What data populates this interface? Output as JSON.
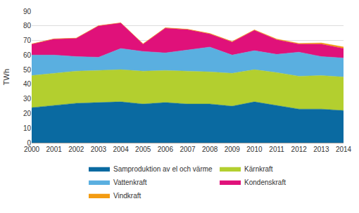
{
  "chart_data": {
    "type": "area",
    "stacked": true,
    "x": [
      2000,
      2001,
      2002,
      2003,
      2004,
      2005,
      2006,
      2007,
      2008,
      2009,
      2010,
      2011,
      2012,
      2013,
      2014
    ],
    "xlim": [
      2000,
      2014
    ],
    "xticks": [
      2000,
      2001,
      2002,
      2003,
      2004,
      2005,
      2006,
      2007,
      2008,
      2009,
      2010,
      2011,
      2012,
      2013,
      2014
    ],
    "y_label": "TWh",
    "ylim": [
      0,
      90
    ],
    "yticks": [
      0,
      10,
      20,
      30,
      40,
      50,
      60,
      70,
      80,
      90
    ],
    "grid": true,
    "legend": "bottom",
    "series": [
      {
        "name": "Samproduktion av el och värme",
        "color": "#0a6aa1",
        "values": [
          24,
          25.5,
          27,
          27.5,
          28,
          26.5,
          27.5,
          26.5,
          26.5,
          25,
          28,
          25.5,
          23,
          23,
          22
        ]
      },
      {
        "name": "Kärnkraft",
        "color": "#b3cf2f",
        "values": [
          22,
          22,
          22,
          22,
          22,
          22.5,
          22,
          22.5,
          22,
          22.5,
          22,
          22.5,
          22.5,
          23,
          23
        ]
      },
      {
        "name": "Vattenkraft",
        "color": "#5aafe0",
        "values": [
          14,
          12.5,
          10,
          9,
          14.5,
          13.5,
          12,
          14.5,
          17,
          12.5,
          13,
          12.5,
          16.5,
          13,
          13
        ]
      },
      {
        "name": "Kondenskraft",
        "color": "#e0117a",
        "values": [
          7.5,
          11,
          12.5,
          21.5,
          17.5,
          5,
          17,
          14,
          9,
          9,
          14,
          10,
          5.5,
          8.5,
          6.5
        ]
      },
      {
        "name": "Vindkraft",
        "color": "#f39c12",
        "values": [
          0.1,
          0.1,
          0.1,
          0.1,
          0.1,
          0.2,
          0.2,
          0.2,
          0.3,
          0.3,
          0.3,
          0.5,
          0.5,
          0.8,
          1.1
        ]
      }
    ]
  }
}
